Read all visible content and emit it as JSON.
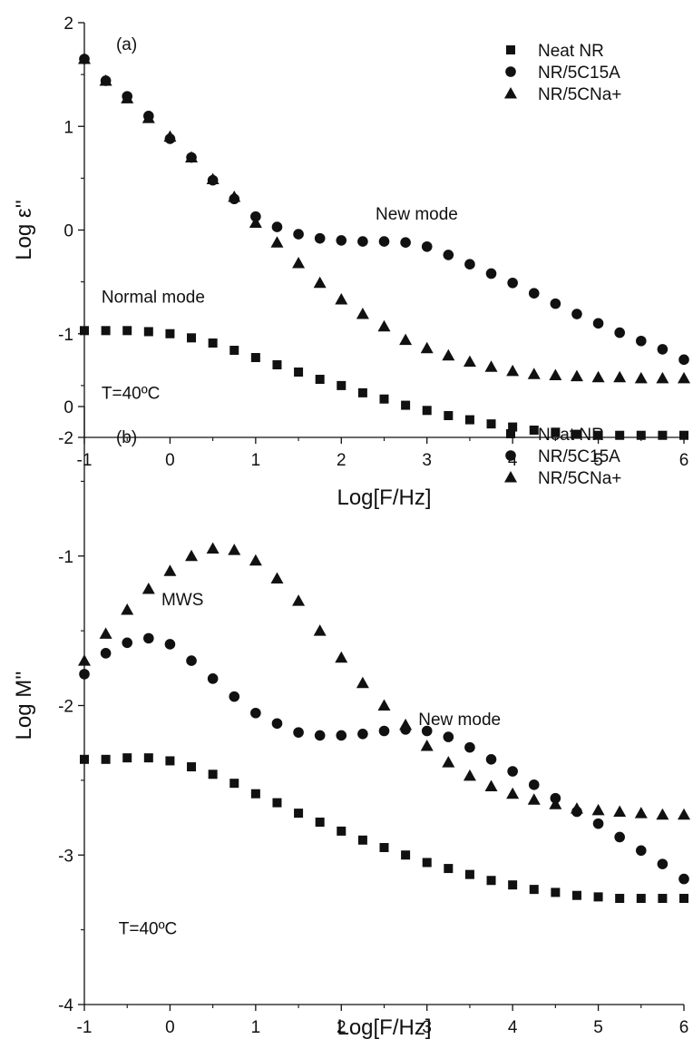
{
  "colors": {
    "marker": "#111111",
    "axis": "#111111",
    "background": "#ffffff"
  },
  "chart_data": [
    {
      "type": "scatter",
      "panel_label": "(a)",
      "xlabel": "Log[F/Hz]",
      "ylabel": "Log ε''",
      "xlim": [
        -1,
        6
      ],
      "ylim": [
        -2,
        2
      ],
      "xticks": [
        "-1",
        "0",
        "1",
        "2",
        "3",
        "4",
        "5",
        "6"
      ],
      "yticks": [
        "-2",
        "-1",
        "0",
        "1",
        "2"
      ],
      "grid": false,
      "legend_position": "top-right",
      "annotations": [
        {
          "text": "New mode",
          "x": 2.4,
          "y": 0.1
        },
        {
          "text": "Normal mode",
          "x": -0.8,
          "y": -0.7
        },
        {
          "text": "T=40ºC",
          "x": -0.8,
          "y": -1.63
        }
      ],
      "series": [
        {
          "name": "Neat NR",
          "marker": "square",
          "x": [
            -1.0,
            -0.75,
            -0.5,
            -0.25,
            0.0,
            0.25,
            0.5,
            0.75,
            1.0,
            1.25,
            1.5,
            1.75,
            2.0,
            2.25,
            2.5,
            2.75,
            3.0,
            3.25,
            3.5,
            3.75,
            4.0,
            4.25,
            4.5,
            4.75,
            5.0,
            5.25,
            5.5,
            5.75,
            6.0
          ],
          "y": [
            -0.97,
            -0.97,
            -0.97,
            -0.98,
            -1.0,
            -1.04,
            -1.09,
            -1.16,
            -1.23,
            -1.3,
            -1.37,
            -1.44,
            -1.5,
            -1.57,
            -1.63,
            -1.69,
            -1.74,
            -1.79,
            -1.83,
            -1.87,
            -1.9,
            -1.93,
            -1.95,
            -1.97,
            -1.98,
            -1.98,
            -1.98,
            -1.98,
            -1.98
          ]
        },
        {
          "name": "NR/5C15A",
          "marker": "circle",
          "x": [
            -1.0,
            -0.75,
            -0.5,
            -0.25,
            0.0,
            0.25,
            0.5,
            0.75,
            1.0,
            1.25,
            1.5,
            1.75,
            2.0,
            2.25,
            2.5,
            2.75,
            3.0,
            3.25,
            3.5,
            3.75,
            4.0,
            4.25,
            4.5,
            4.75,
            5.0,
            5.25,
            5.5,
            5.75,
            6.0
          ],
          "y": [
            1.65,
            1.44,
            1.29,
            1.1,
            0.88,
            0.7,
            0.48,
            0.3,
            0.13,
            0.03,
            -0.04,
            -0.08,
            -0.1,
            -0.11,
            -0.11,
            -0.12,
            -0.16,
            -0.24,
            -0.33,
            -0.42,
            -0.51,
            -0.61,
            -0.71,
            -0.81,
            -0.9,
            -0.99,
            -1.07,
            -1.15,
            -1.25
          ]
        },
        {
          "name": "NR/5CNa+",
          "marker": "triangle",
          "x": [
            -1.0,
            -0.75,
            -0.5,
            -0.25,
            0.0,
            0.25,
            0.5,
            0.75,
            1.0,
            1.25,
            1.5,
            1.75,
            2.0,
            2.25,
            2.5,
            2.75,
            3.0,
            3.25,
            3.5,
            3.75,
            4.0,
            4.25,
            4.5,
            4.75,
            5.0,
            5.25,
            5.5,
            5.75,
            6.0
          ],
          "y": [
            1.65,
            1.44,
            1.27,
            1.08,
            0.9,
            0.7,
            0.49,
            0.32,
            0.07,
            -0.12,
            -0.32,
            -0.51,
            -0.67,
            -0.81,
            -0.93,
            -1.06,
            -1.14,
            -1.21,
            -1.27,
            -1.32,
            -1.36,
            -1.39,
            -1.4,
            -1.41,
            -1.42,
            -1.42,
            -1.43,
            -1.43,
            -1.43
          ]
        }
      ]
    },
    {
      "type": "scatter",
      "panel_label": "(b)",
      "xlabel": "Log[F/Hz]",
      "ylabel": "Log M''",
      "xlim": [
        -1,
        6
      ],
      "ylim": [
        -4,
        0
      ],
      "xticks": [
        "-1",
        "0",
        "1",
        "2",
        "3",
        "4",
        "5",
        "6"
      ],
      "yticks": [
        "-4",
        "-3",
        "-2",
        "-1",
        "0"
      ],
      "grid": false,
      "legend_position": "top-right",
      "annotations": [
        {
          "text": "MWS",
          "x": -0.1,
          "y": -1.33
        },
        {
          "text": "New mode",
          "x": 2.9,
          "y": -2.13
        },
        {
          "text": "T=40ºC",
          "x": -0.6,
          "y": -3.53
        }
      ],
      "series": [
        {
          "name": "Neat NR",
          "marker": "square",
          "x": [
            -1.0,
            -0.75,
            -0.5,
            -0.25,
            0.0,
            0.25,
            0.5,
            0.75,
            1.0,
            1.25,
            1.5,
            1.75,
            2.0,
            2.25,
            2.5,
            2.75,
            3.0,
            3.25,
            3.5,
            3.75,
            4.0,
            4.25,
            4.5,
            4.75,
            5.0,
            5.25,
            5.5,
            5.75,
            6.0
          ],
          "y": [
            -2.36,
            -2.36,
            -2.35,
            -2.35,
            -2.37,
            -2.41,
            -2.46,
            -2.52,
            -2.59,
            -2.65,
            -2.72,
            -2.78,
            -2.84,
            -2.9,
            -2.95,
            -3.0,
            -3.05,
            -3.09,
            -3.13,
            -3.17,
            -3.2,
            -3.23,
            -3.25,
            -3.27,
            -3.28,
            -3.29,
            -3.29,
            -3.29,
            -3.29
          ]
        },
        {
          "name": "NR/5C15A",
          "marker": "circle",
          "x": [
            -1.0,
            -0.75,
            -0.5,
            -0.25,
            0.0,
            0.25,
            0.5,
            0.75,
            1.0,
            1.25,
            1.5,
            1.75,
            2.0,
            2.25,
            2.5,
            2.75,
            3.0,
            3.25,
            3.5,
            3.75,
            4.0,
            4.25,
            4.5,
            4.75,
            5.0,
            5.25,
            5.5,
            5.75,
            6.0
          ],
          "y": [
            -1.79,
            -1.65,
            -1.58,
            -1.55,
            -1.59,
            -1.7,
            -1.82,
            -1.94,
            -2.05,
            -2.12,
            -2.18,
            -2.2,
            -2.2,
            -2.19,
            -2.17,
            -2.16,
            -2.17,
            -2.21,
            -2.28,
            -2.36,
            -2.44,
            -2.53,
            -2.62,
            -2.71,
            -2.79,
            -2.88,
            -2.97,
            -3.06,
            -3.16
          ]
        },
        {
          "name": "NR/5CNa+",
          "marker": "triangle",
          "x": [
            -1.0,
            -0.75,
            -0.5,
            -0.25,
            0.0,
            0.25,
            0.5,
            0.75,
            1.0,
            1.25,
            1.5,
            1.75,
            2.0,
            2.25,
            2.5,
            2.75,
            3.0,
            3.25,
            3.5,
            3.75,
            4.0,
            4.25,
            4.5,
            4.75,
            5.0,
            5.25,
            5.5,
            5.75,
            6.0
          ],
          "y": [
            -1.7,
            -1.52,
            -1.36,
            -1.22,
            -1.1,
            -1.0,
            -0.95,
            -0.96,
            -1.03,
            -1.15,
            -1.3,
            -1.5,
            -1.68,
            -1.85,
            -2.0,
            -2.13,
            -2.27,
            -2.38,
            -2.47,
            -2.54,
            -2.59,
            -2.63,
            -2.66,
            -2.69,
            -2.7,
            -2.71,
            -2.72,
            -2.73,
            -2.73
          ]
        }
      ]
    }
  ]
}
